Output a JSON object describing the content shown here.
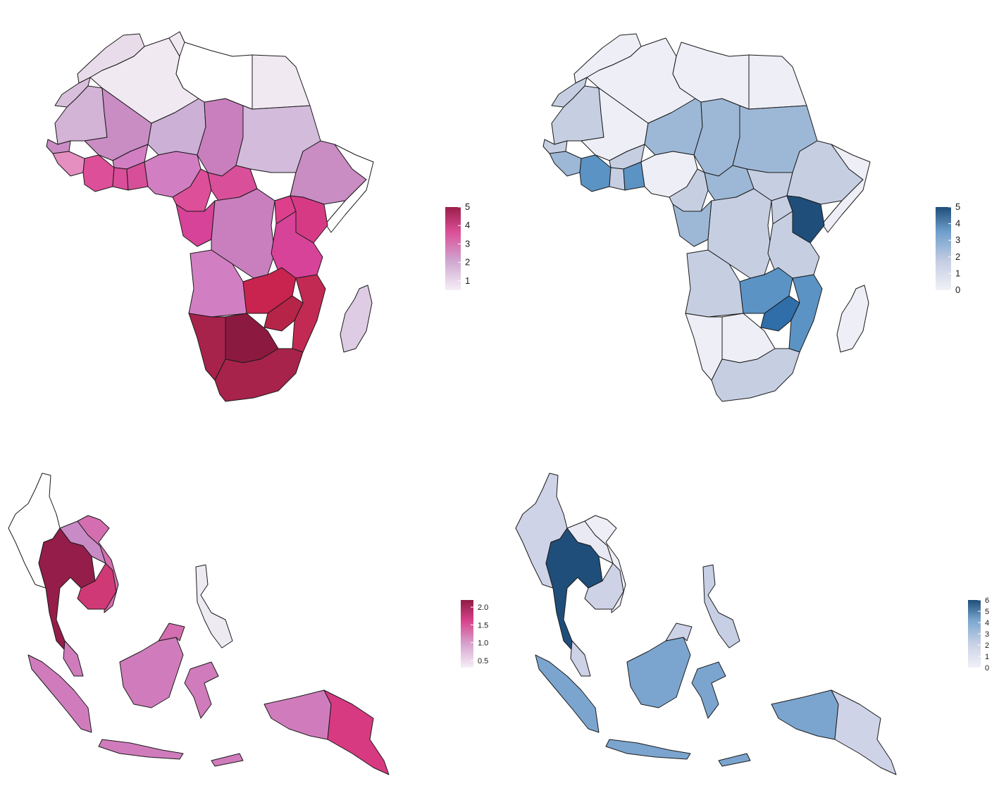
{
  "panels": [
    {
      "id": "africa-pink",
      "legend": {
        "ticks": [
          "5",
          "4",
          "3",
          "2",
          "1"
        ],
        "min": 0.5,
        "max": 5,
        "colors": [
          "#f6eff7",
          "#cfa6cf",
          "#dc4f97",
          "#9b1e4a"
        ]
      },
      "colors": {
        "north": "#f1e9f2",
        "west": "#c98cc3",
        "central": "#da4f9a",
        "south": "#a7234c",
        "botswana": "#8c1a40",
        "madagascar": "#ddcce3",
        "sudan": "#d3bcdb"
      }
    },
    {
      "id": "africa-blue",
      "legend": {
        "ticks": [
          "5",
          "4",
          "3",
          "2",
          "1",
          "0"
        ],
        "min": 0,
        "max": 5,
        "colors": [
          "#f1f1f7",
          "#c4cde3",
          "#6f9fcc",
          "#1f4e7a"
        ]
      },
      "colors": {
        "light": "#eeeef6",
        "mid": "#c6cfe2",
        "steel": "#9db8d6",
        "blue": "#5b93c4",
        "kenya": "#1f4e7a"
      }
    },
    {
      "id": "sea-pink",
      "legend": {
        "ticks": [
          "2.0",
          "1.5",
          "1.0",
          "0.5"
        ],
        "min": 0.3,
        "max": 2.2,
        "colors": [
          "#f6eff7",
          "#d7a3cf",
          "#d7418a",
          "#8f1d45"
        ]
      },
      "colors": {
        "thailand": "#941e49",
        "cambodia": "#cf3a76",
        "laos": "#c98bc6",
        "vietnam": "#d46eb0",
        "indonesia": "#d07cbc",
        "png": "#d73a81",
        "philippines": "#eeeaf2"
      }
    },
    {
      "id": "sea-blue",
      "legend": {
        "ticks": [
          "6",
          "5",
          "4",
          "3",
          "2",
          "1",
          "0"
        ],
        "min": 0,
        "max": 6,
        "colors": [
          "#f1f1f7",
          "#c9d1e6",
          "#7aa6cf",
          "#1f4e7a"
        ]
      },
      "colors": {
        "thailand": "#1f4e7a",
        "myanmar": "#cfd3e8",
        "laos": "#e9e9f3",
        "cambodia": "#cdd2e7",
        "indonesia": "#7ba5cf",
        "png": "#cfd3e8",
        "philippines": "#c7cfe5"
      }
    }
  ]
}
